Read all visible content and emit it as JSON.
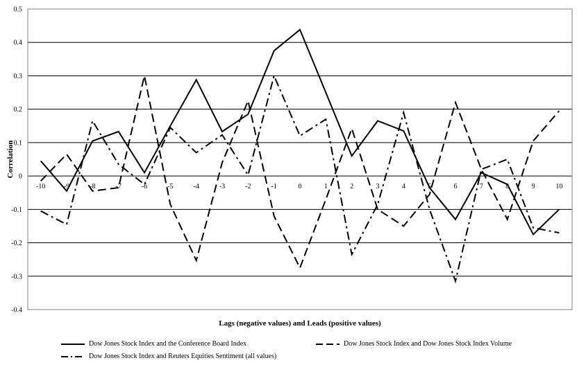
{
  "chart_data": {
    "type": "line",
    "xlabel": "Lags (negative values) and Leads (positive values)",
    "ylabel": "Correlation",
    "ylim": [
      -0.4,
      0.5
    ],
    "ytick_step": 0.1,
    "yticks": [
      "-0.4",
      "-0.3",
      "-0.2",
      "-0.1",
      "0",
      "0.1",
      "0.2",
      "0.3",
      "0.4",
      "0.5"
    ],
    "x": [
      -10,
      -9,
      -8,
      -7,
      -6,
      -5,
      -4,
      -3,
      -2,
      -1,
      0,
      1,
      2,
      3,
      4,
      5,
      6,
      7,
      8,
      9,
      10
    ],
    "grid": "horizontal",
    "legend_position": "bottom",
    "series": [
      {
        "name": "Dow Jones Stock Index and the Conference Board Index",
        "style": "solid",
        "values": [
          0.045,
          -0.045,
          0.105,
          0.133,
          0.01,
          0.15,
          0.288,
          0.133,
          0.185,
          0.375,
          0.438,
          0.25,
          0.06,
          0.165,
          0.135,
          -0.035,
          -0.13,
          0.01,
          -0.025,
          -0.175,
          -0.1
        ]
      },
      {
        "name": "Dow Jones Stock Index and Dow Jones Stock Index Volume",
        "style": "dash",
        "values": [
          -0.015,
          0.065,
          -0.045,
          -0.035,
          0.3,
          -0.085,
          -0.253,
          0.04,
          0.225,
          -0.12,
          -0.275,
          -0.07,
          0.142,
          -0.1,
          -0.15,
          -0.055,
          0.22,
          0.02,
          -0.13,
          0.105,
          0.195
        ]
      },
      {
        "name": "Dow Jones Stock Index and Reuters Equities Sentiment (all values)",
        "style": "dashdot",
        "values": [
          -0.105,
          -0.145,
          0.165,
          0.035,
          -0.025,
          0.145,
          0.07,
          0.123,
          0.003,
          0.3,
          0.12,
          0.17,
          -0.235,
          -0.085,
          0.19,
          -0.1,
          -0.315,
          0.02,
          0.05,
          -0.155,
          -0.17
        ]
      }
    ]
  }
}
